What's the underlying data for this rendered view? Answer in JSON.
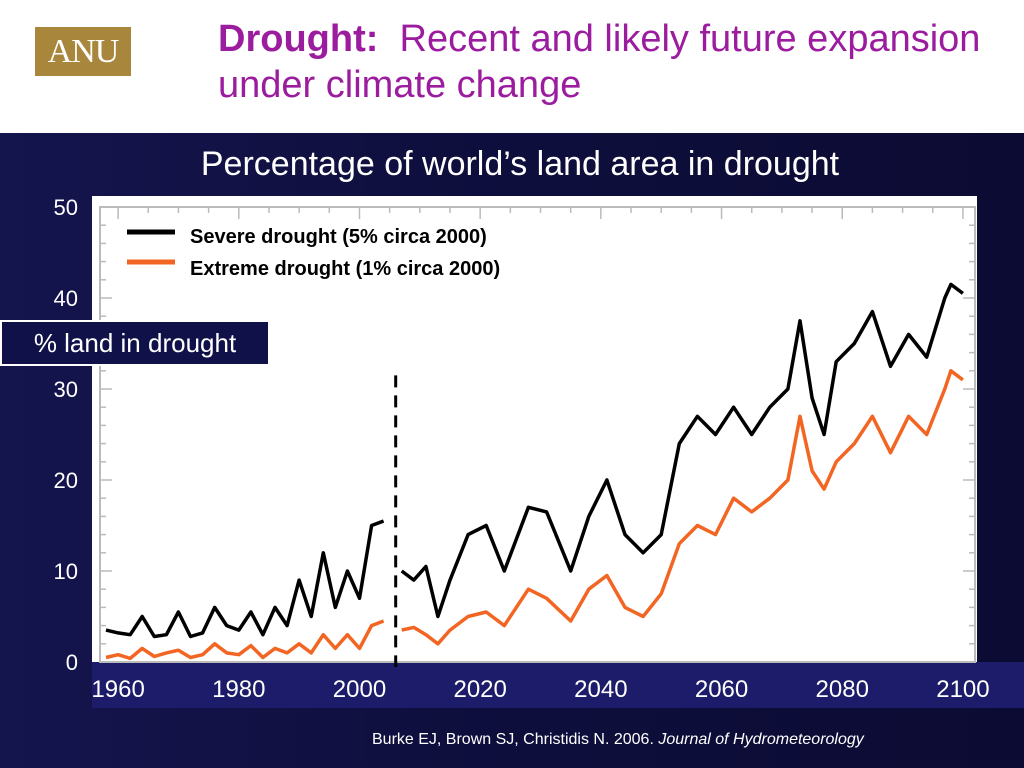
{
  "header": {
    "logo_text": "ANU",
    "title_bold": "Drought:",
    "title_rest": "Recent and likely future expansion under climate change"
  },
  "colors": {
    "title": "#9b1c9e",
    "logo": "#a8873d",
    "panel": "#0f0f3f",
    "severe": "#000000",
    "extreme": "#f26522"
  },
  "citation": {
    "authors": "Burke EJ, Brown SJ, Christidis N. 2006.",
    "journal": "Journal of Hydrometeorology"
  },
  "chart_data": {
    "type": "line",
    "title": "Percentage of world’s land area in drought",
    "ylabel": "% land in drought",
    "xlabel": "",
    "xlim": [
      1957,
      2102
    ],
    "ylim": [
      0,
      50
    ],
    "x_ticks": [
      1960,
      1980,
      2000,
      2020,
      2040,
      2060,
      2080,
      2100
    ],
    "y_ticks": [
      0,
      10,
      20,
      30,
      40,
      50
    ],
    "x_tick_labels": [
      "1960",
      "1980",
      "2000",
      "2020",
      "2040",
      "2060",
      "2080",
      "2100"
    ],
    "y_tick_labels": [
      "0",
      "10",
      "20",
      "30",
      "40",
      "50"
    ],
    "grid": false,
    "legend_position": "top-left",
    "divider_year": 2006,
    "series": [
      {
        "name": "Severe drought   (5% circa 2000)",
        "color": "#000000",
        "points": [
          [
            1958,
            3.5
          ],
          [
            1960,
            3.2
          ],
          [
            1962,
            3
          ],
          [
            1964,
            5
          ],
          [
            1966,
            2.8
          ],
          [
            1968,
            3
          ],
          [
            1970,
            5.5
          ],
          [
            1972,
            2.8
          ],
          [
            1974,
            3.2
          ],
          [
            1976,
            6
          ],
          [
            1978,
            4
          ],
          [
            1980,
            3.5
          ],
          [
            1982,
            5.5
          ],
          [
            1984,
            3
          ],
          [
            1986,
            6
          ],
          [
            1988,
            4
          ],
          [
            1990,
            9
          ],
          [
            1992,
            5
          ],
          [
            1994,
            12
          ],
          [
            1996,
            6
          ],
          [
            1998,
            10
          ],
          [
            2000,
            7
          ],
          [
            2002,
            15
          ],
          [
            2004,
            15.5
          ]
        ]
      },
      {
        "name": "Severe drought   (5% circa 2000)",
        "color": "#000000",
        "points": [
          [
            2007,
            10
          ],
          [
            2009,
            9
          ],
          [
            2011,
            10.5
          ],
          [
            2013,
            5
          ],
          [
            2015,
            9
          ],
          [
            2018,
            14
          ],
          [
            2021,
            15
          ],
          [
            2024,
            10
          ],
          [
            2028,
            17
          ],
          [
            2031,
            16.5
          ],
          [
            2035,
            10
          ],
          [
            2038,
            16
          ],
          [
            2041,
            20
          ],
          [
            2044,
            14
          ],
          [
            2047,
            12
          ],
          [
            2050,
            14
          ],
          [
            2053,
            24
          ],
          [
            2056,
            27
          ],
          [
            2059,
            25
          ],
          [
            2062,
            28
          ],
          [
            2065,
            25
          ],
          [
            2068,
            28
          ],
          [
            2071,
            30
          ],
          [
            2073,
            37.5
          ],
          [
            2075,
            29
          ],
          [
            2077,
            25
          ],
          [
            2079,
            33
          ],
          [
            2082,
            35
          ],
          [
            2085,
            38.5
          ],
          [
            2088,
            32.5
          ],
          [
            2091,
            36
          ],
          [
            2094,
            33.5
          ],
          [
            2097,
            40
          ],
          [
            2098,
            41.5
          ],
          [
            2100,
            40.5
          ]
        ]
      },
      {
        "name": "Extreme drought (1% circa 2000)",
        "color": "#f26522",
        "points": [
          [
            1958,
            0.5
          ],
          [
            1960,
            0.8
          ],
          [
            1962,
            0.4
          ],
          [
            1964,
            1.5
          ],
          [
            1966,
            0.6
          ],
          [
            1968,
            1
          ],
          [
            1970,
            1.3
          ],
          [
            1972,
            0.5
          ],
          [
            1974,
            0.8
          ],
          [
            1976,
            2
          ],
          [
            1978,
            1
          ],
          [
            1980,
            0.8
          ],
          [
            1982,
            1.8
          ],
          [
            1984,
            0.5
          ],
          [
            1986,
            1.5
          ],
          [
            1988,
            1
          ],
          [
            1990,
            2
          ],
          [
            1992,
            1
          ],
          [
            1994,
            3
          ],
          [
            1996,
            1.5
          ],
          [
            1998,
            3
          ],
          [
            2000,
            1.5
          ],
          [
            2002,
            4
          ],
          [
            2004,
            4.5
          ]
        ]
      },
      {
        "name": "Extreme drought (1% circa 2000)",
        "color": "#f26522",
        "points": [
          [
            2007,
            3.5
          ],
          [
            2009,
            3.8
          ],
          [
            2011,
            3
          ],
          [
            2013,
            2
          ],
          [
            2015,
            3.5
          ],
          [
            2018,
            5
          ],
          [
            2021,
            5.5
          ],
          [
            2024,
            4
          ],
          [
            2028,
            8
          ],
          [
            2031,
            7
          ],
          [
            2035,
            4.5
          ],
          [
            2038,
            8
          ],
          [
            2041,
            9.5
          ],
          [
            2044,
            6
          ],
          [
            2047,
            5
          ],
          [
            2050,
            7.5
          ],
          [
            2053,
            13
          ],
          [
            2056,
            15
          ],
          [
            2059,
            14
          ],
          [
            2062,
            18
          ],
          [
            2065,
            16.5
          ],
          [
            2068,
            18
          ],
          [
            2071,
            20
          ],
          [
            2073,
            27
          ],
          [
            2075,
            21
          ],
          [
            2077,
            19
          ],
          [
            2079,
            22
          ],
          [
            2082,
            24
          ],
          [
            2085,
            27
          ],
          [
            2088,
            23
          ],
          [
            2091,
            27
          ],
          [
            2094,
            25
          ],
          [
            2097,
            30
          ],
          [
            2098,
            32
          ],
          [
            2100,
            31
          ]
        ]
      }
    ]
  }
}
